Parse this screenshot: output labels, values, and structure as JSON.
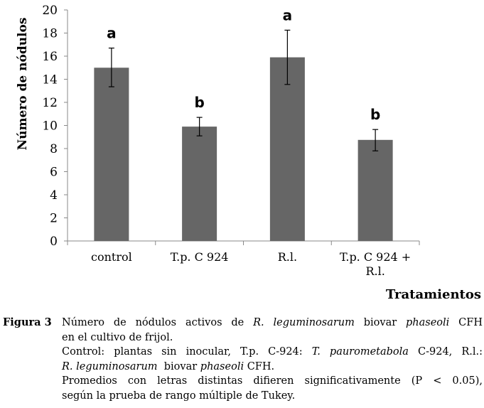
{
  "chart_data": {
    "type": "bar",
    "title": "",
    "xlabel": "Tratamientos",
    "ylabel": "Número de nódulos",
    "ylim": [
      0,
      20
    ],
    "yticks": [
      0,
      2,
      4,
      6,
      8,
      10,
      12,
      14,
      16,
      18,
      20
    ],
    "categories": [
      [
        "control"
      ],
      [
        "T.p. C 924"
      ],
      [
        "R.l."
      ],
      [
        "T.p. C 924 +",
        "R.l."
      ]
    ],
    "values": [
      15.0,
      9.9,
      15.9,
      8.75
    ],
    "error_low": [
      13.35,
      9.1,
      13.55,
      7.8
    ],
    "error_high": [
      16.7,
      10.7,
      18.25,
      9.65
    ],
    "significance_letters": [
      "a",
      "b",
      "a",
      "b"
    ],
    "bar_color": "#666666",
    "grid": false,
    "legend": "none"
  },
  "caption": {
    "label": "Figura 3",
    "line1": [
      {
        "t": "Número de nódulos activos de ",
        "i": false
      },
      {
        "t": "R. leguminosarum",
        "i": true
      },
      {
        "t": " biovar ",
        "i": false
      },
      {
        "t": "phaseoli",
        "i": true
      },
      {
        "t": " CFH",
        "i": false
      }
    ],
    "line2": "en el cultivo de frijol.",
    "line3": [
      {
        "t": "Control: plantas sin inocular, T.p. C-924: ",
        "i": false
      },
      {
        "t": "T. paurometabola",
        "i": true
      },
      {
        "t": " C-924, R.l.:",
        "i": false
      }
    ],
    "line4": [
      {
        "t": "R. leguminosarum",
        "i": true
      },
      {
        "t": "  biovar ",
        "i": false
      },
      {
        "t": "phaseoli",
        "i": true
      },
      {
        "t": " CFH.",
        "i": false
      }
    ],
    "line5": "Promedios con letras distintas difieren significativamente (P < 0.05),",
    "line6": "según la prueba de rango múltiple de Tukey."
  }
}
